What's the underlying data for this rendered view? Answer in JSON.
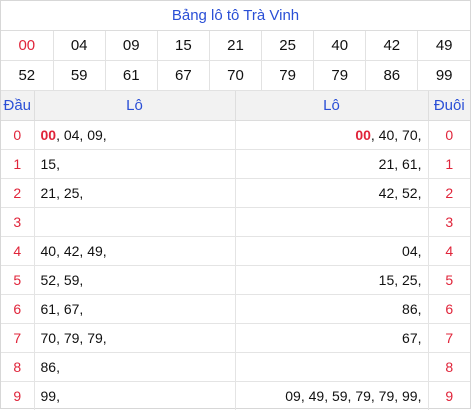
{
  "title": "Bảng lô tô Trà Vinh",
  "numbers_row1": [
    "00",
    "04",
    "09",
    "15",
    "21",
    "25",
    "40",
    "42",
    "49"
  ],
  "numbers_row2": [
    "52",
    "59",
    "61",
    "67",
    "70",
    "79",
    "79",
    "86",
    "99"
  ],
  "header": {
    "dau": "Đầu",
    "lo_left": "Lô",
    "lo_right": "Lô",
    "duoi": "Đuôi"
  },
  "rows": [
    {
      "digit": "0",
      "dau_highlight": "00",
      "dau_rest": ", 04, 09,",
      "duoi_highlight": "00",
      "duoi_rest": ", 40, 70,"
    },
    {
      "digit": "1",
      "dau_highlight": "",
      "dau_rest": "15,",
      "duoi_highlight": "",
      "duoi_rest": "21, 61,"
    },
    {
      "digit": "2",
      "dau_highlight": "",
      "dau_rest": "21, 25,",
      "duoi_highlight": "",
      "duoi_rest": "42, 52,"
    },
    {
      "digit": "3",
      "dau_highlight": "",
      "dau_rest": "",
      "duoi_highlight": "",
      "duoi_rest": ""
    },
    {
      "digit": "4",
      "dau_highlight": "",
      "dau_rest": "40, 42, 49,",
      "duoi_highlight": "",
      "duoi_rest": "04,"
    },
    {
      "digit": "5",
      "dau_highlight": "",
      "dau_rest": "52, 59,",
      "duoi_highlight": "",
      "duoi_rest": "15, 25,"
    },
    {
      "digit": "6",
      "dau_highlight": "",
      "dau_rest": "61, 67,",
      "duoi_highlight": "",
      "duoi_rest": "86,"
    },
    {
      "digit": "7",
      "dau_highlight": "",
      "dau_rest": "70, 79, 79,",
      "duoi_highlight": "",
      "duoi_rest": "67,"
    },
    {
      "digit": "8",
      "dau_highlight": "",
      "dau_rest": "86,",
      "duoi_highlight": "",
      "duoi_rest": ""
    },
    {
      "digit": "9",
      "dau_highlight": "",
      "dau_rest": "99,",
      "duoi_highlight": "",
      "duoi_rest": "09, 49, 59, 79, 79, 99,"
    }
  ],
  "colors": {
    "accent_blue": "#2a4fd6",
    "highlight_red": "#e0243a"
  }
}
